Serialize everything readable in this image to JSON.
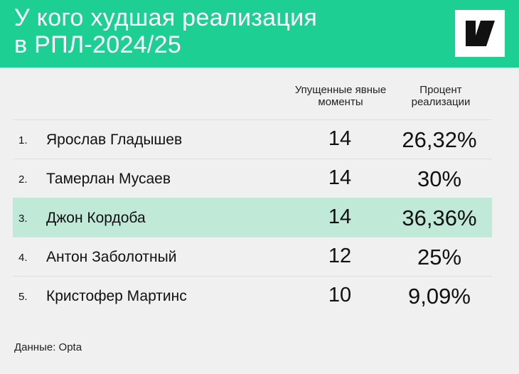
{
  "header": {
    "title_line1": "У кого худшая реализация",
    "title_line2": "в РПЛ-2024/25",
    "background_color": "#1ecf93",
    "logo_icon": "sports-logo-icon"
  },
  "table": {
    "columns": {
      "missed_chances": "Упущенные явные моменты",
      "conversion": "Процент реализации"
    },
    "rows": [
      {
        "rank": "1.",
        "name": "Ярослав Гладышев",
        "missed": "14",
        "conversion": "26,32%",
        "highlight": false
      },
      {
        "rank": "2.",
        "name": "Тамерлан Мусаев",
        "missed": "14",
        "conversion": "30%",
        "highlight": false
      },
      {
        "rank": "3.",
        "name": "Джон Кордоба",
        "missed": "14",
        "conversion": "36,36%",
        "highlight": true
      },
      {
        "rank": "4.",
        "name": "Антон Заболотный",
        "missed": "12",
        "conversion": "25%",
        "highlight": false
      },
      {
        "rank": "5.",
        "name": "Кристофер Мартинс",
        "missed": "10",
        "conversion": "9,09%",
        "highlight": false
      }
    ],
    "highlight_color": "#c0e9d8"
  },
  "footer": {
    "source": "Данные: Opta"
  }
}
